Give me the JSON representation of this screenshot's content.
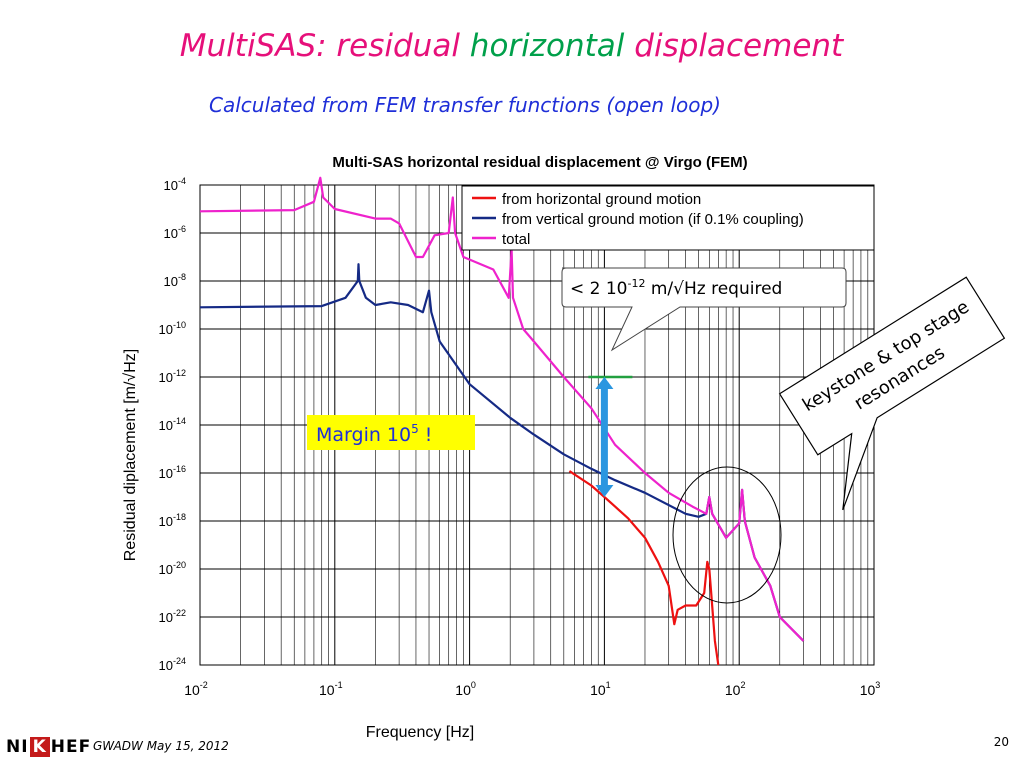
{
  "slide": {
    "title_part1": "MultiSAS: residual",
    "title_part2": "horizontal",
    "title_part3": "displacement",
    "subtitle": "Calculated from FEM transfer functions (open loop)",
    "footer": "GWADW May 15, 2012",
    "page_number": "20",
    "logo": {
      "left": "NI",
      "box": "K",
      "right": "HEF"
    }
  },
  "chart_data": {
    "type": "line",
    "title": "Multi-SAS horizontal residual displacement @ Virgo (FEM)",
    "xlabel": "Frequency [Hz]",
    "ylabel": "Residual diplacement [m/√Hz]",
    "x_scale": "log",
    "y_scale": "log",
    "xlim": [
      0.01,
      1000
    ],
    "ylim": [
      1e-24,
      0.0001
    ],
    "x_ticks": [
      {
        "mant": "10",
        "exp": "-2"
      },
      {
        "mant": "10",
        "exp": "-1"
      },
      {
        "mant": "10",
        "exp": "0"
      },
      {
        "mant": "10",
        "exp": "1"
      },
      {
        "mant": "10",
        "exp": "2"
      },
      {
        "mant": "10",
        "exp": "3"
      }
    ],
    "y_ticks": [
      {
        "mant": "10",
        "exp": "-4"
      },
      {
        "mant": "10",
        "exp": "-6"
      },
      {
        "mant": "10",
        "exp": "-8"
      },
      {
        "mant": "10",
        "exp": "-10"
      },
      {
        "mant": "10",
        "exp": "-12"
      },
      {
        "mant": "10",
        "exp": "-14"
      },
      {
        "mant": "10",
        "exp": "-16"
      },
      {
        "mant": "10",
        "exp": "-18"
      },
      {
        "mant": "10",
        "exp": "-20"
      },
      {
        "mant": "10",
        "exp": "-22"
      },
      {
        "mant": "10",
        "exp": "-24"
      }
    ],
    "grid": true,
    "legend_position": "top-right",
    "series": [
      {
        "name": "from horizontal ground motion",
        "color": "#ee1111",
        "points": [
          [
            5.5,
            1.2e-16
          ],
          [
            8,
            3e-17
          ],
          [
            10,
            1e-17
          ],
          [
            12,
            4e-18
          ],
          [
            15,
            1.3e-18
          ],
          [
            20,
            2e-19
          ],
          [
            25,
            2e-20
          ],
          [
            30,
            2e-21
          ],
          [
            33,
            5e-23
          ],
          [
            35,
            2e-22
          ],
          [
            40,
            3e-22
          ],
          [
            48,
            3e-22
          ],
          [
            55,
            1e-21
          ],
          [
            58,
            2e-20
          ],
          [
            60,
            1e-20
          ],
          [
            62,
            1e-21
          ],
          [
            66,
            1e-23
          ],
          [
            70,
            1e-24
          ]
        ]
      },
      {
        "name": "from vertical ground motion (if 0.1% coupling)",
        "color": "#152a85",
        "points": [
          [
            0.01,
            8e-10
          ],
          [
            0.08,
            9e-10
          ],
          [
            0.12,
            2e-09
          ],
          [
            0.148,
            1e-08
          ],
          [
            0.15,
            5e-08
          ],
          [
            0.152,
            1e-08
          ],
          [
            0.17,
            2e-09
          ],
          [
            0.2,
            1e-09
          ],
          [
            0.26,
            1.3e-09
          ],
          [
            0.35,
            1e-09
          ],
          [
            0.45,
            5e-10
          ],
          [
            0.5,
            4e-09
          ],
          [
            0.52,
            5e-10
          ],
          [
            0.6,
            3e-11
          ],
          [
            1,
            5e-13
          ],
          [
            2,
            2e-14
          ],
          [
            3,
            4e-15
          ],
          [
            5,
            6e-16
          ],
          [
            8,
            1.5e-16
          ],
          [
            12,
            5e-17
          ],
          [
            20,
            1.5e-17
          ],
          [
            40,
            2e-18
          ],
          [
            50,
            1.5e-18
          ],
          [
            57,
            2e-18
          ],
          [
            60,
            1e-17
          ],
          [
            63,
            2e-18
          ],
          [
            80,
            2e-19
          ],
          [
            100,
            8e-19
          ],
          [
            105,
            2e-17
          ],
          [
            110,
            1e-18
          ],
          [
            130,
            3e-20
          ],
          [
            170,
            2e-21
          ],
          [
            200,
            1e-22
          ],
          [
            300,
            1e-23
          ]
        ]
      },
      {
        "name": "total",
        "color": "#ee22cc",
        "points": [
          [
            0.01,
            8e-06
          ],
          [
            0.05,
            9e-06
          ],
          [
            0.07,
            2e-05
          ],
          [
            0.078,
            0.0002
          ],
          [
            0.082,
            3e-05
          ],
          [
            0.1,
            1e-05
          ],
          [
            0.2,
            4e-06
          ],
          [
            0.26,
            4e-06
          ],
          [
            0.3,
            2.5e-06
          ],
          [
            0.4,
            1e-07
          ],
          [
            0.45,
            1e-07
          ],
          [
            0.55,
            8e-07
          ],
          [
            0.7,
            1e-06
          ],
          [
            0.75,
            3e-05
          ],
          [
            0.78,
            1e-06
          ],
          [
            0.9,
            1e-07
          ],
          [
            1.5,
            3e-08
          ],
          [
            1.95,
            2e-09
          ],
          [
            2.05,
            2e-07
          ],
          [
            2.1,
            2e-09
          ],
          [
            2.5,
            1e-10
          ],
          [
            3,
            3e-11
          ],
          [
            5,
            1e-12
          ],
          [
            8,
            5e-14
          ],
          [
            12,
            1.5e-15
          ],
          [
            20,
            1e-16
          ],
          [
            30,
            1.5e-17
          ],
          [
            45,
            4e-18
          ],
          [
            57,
            2e-18
          ],
          [
            60,
            1e-17
          ],
          [
            63,
            2e-18
          ],
          [
            80,
            2e-19
          ],
          [
            100,
            8e-19
          ],
          [
            105,
            2e-17
          ],
          [
            110,
            1e-18
          ],
          [
            130,
            3e-20
          ],
          [
            170,
            2e-21
          ],
          [
            200,
            1e-22
          ],
          [
            300,
            1e-23
          ]
        ]
      }
    ],
    "annotations": {
      "requirement_prefix": "< 2 10",
      "requirement_exp": "-12",
      "requirement_suffix": " m/√Hz required",
      "requirement_level": 1e-12,
      "margin_prefix": "Margin 10",
      "margin_exp": "5",
      "margin_suffix": " !",
      "margin_arrow": {
        "x": 10,
        "from": 1e-17,
        "to": 1e-12
      },
      "callout_line1": "keystone & top stage",
      "callout_line2": "resonances"
    }
  }
}
